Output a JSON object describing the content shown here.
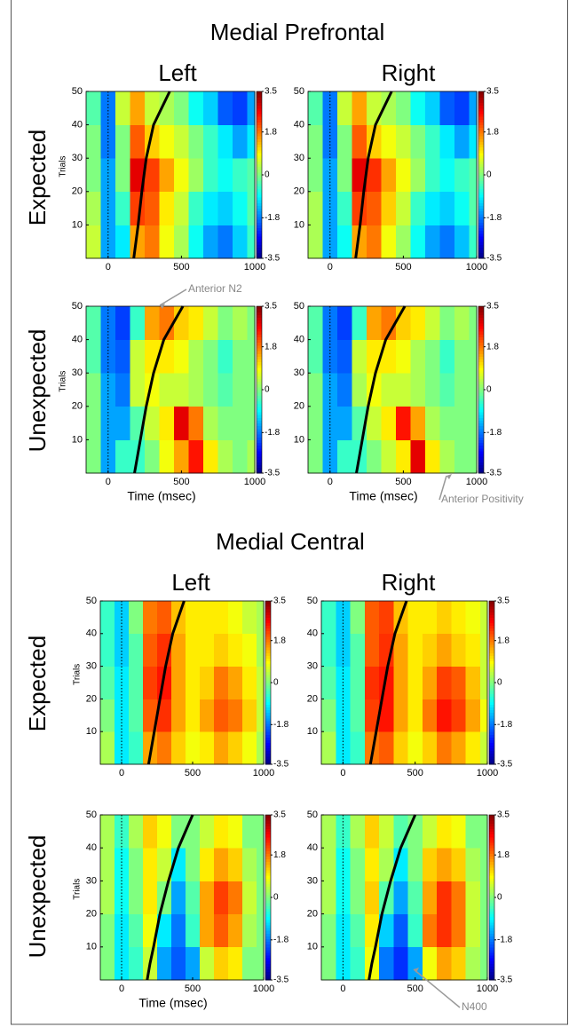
{
  "figure": {
    "sections": [
      {
        "title": "Medial Prefrontal",
        "columns": [
          "Left",
          "Right"
        ],
        "rows": [
          "Expected",
          "Unexpected"
        ]
      },
      {
        "title": "Medial Central",
        "columns": [
          "Left",
          "Right"
        ],
        "rows": [
          "Expected",
          "Unexpected"
        ]
      }
    ]
  },
  "chart_data": [
    {
      "type": "heatmap",
      "ylabel": "Trials",
      "colormap": "jet",
      "x_edges": [
        -150,
        -50,
        50,
        150,
        250,
        350,
        450,
        550,
        650,
        750,
        850,
        950,
        1000
      ],
      "y_edges": [
        0,
        10,
        20,
        30,
        40,
        50
      ],
      "xlim": [
        -150,
        1000
      ],
      "xticks": [
        0,
        500,
        1000
      ],
      "ylim": [
        0,
        50
      ],
      "yticks": [
        10,
        20,
        30,
        40,
        50
      ],
      "clim": [
        -3.5,
        3.5
      ],
      "cticks": [
        -3.5,
        -1.8,
        0,
        1.8,
        3.5
      ],
      "marker_x": 0,
      "values": [
        [
          0.5,
          -1.5,
          -1,
          1.5,
          1.8,
          0.8,
          0.3,
          -0.8,
          -1.5,
          -1.8,
          -1.2,
          -0.5
        ],
        [
          0.3,
          -1.5,
          -0.5,
          2.2,
          2,
          1,
          0.5,
          -0.5,
          -1,
          -1.2,
          -0.8,
          -0.3
        ],
        [
          0,
          -1.5,
          0,
          2.8,
          2.2,
          1.5,
          0.8,
          0.2,
          -0.5,
          -0.8,
          -0.5,
          -0.3
        ],
        [
          0,
          -1.8,
          0,
          2,
          1.2,
          0.8,
          0.5,
          0,
          -0.5,
          -1,
          -1.5,
          -1
        ],
        [
          -0.3,
          -1.8,
          0.5,
          1.5,
          0.5,
          0.3,
          0,
          -0.8,
          -1.2,
          -2,
          -2.2,
          -1.5
        ]
      ],
      "curve": {
        "color": "#000000",
        "x": [
          175,
          190,
          205,
          230,
          260,
          310,
          420
        ],
        "y": [
          0,
          5,
          10,
          20,
          30,
          40,
          50
        ]
      }
    },
    {
      "type": "heatmap",
      "colormap": "jet",
      "x_edges": [
        -150,
        -50,
        50,
        150,
        250,
        350,
        450,
        550,
        650,
        750,
        850,
        950,
        1000
      ],
      "y_edges": [
        0,
        10,
        20,
        30,
        40,
        50
      ],
      "xlim": [
        -150,
        1000
      ],
      "xticks": [
        0,
        500,
        1000
      ],
      "ylim": [
        0,
        50
      ],
      "yticks": [
        10,
        20,
        30,
        40,
        50
      ],
      "clim": [
        -3.5,
        3.5
      ],
      "cticks": [
        -3.5,
        -1.8,
        0,
        1.8,
        3.5
      ],
      "marker_x": 0,
      "values": [
        [
          0.3,
          -1.5,
          -0.8,
          1.5,
          1.8,
          0.8,
          0.2,
          -0.8,
          -1.5,
          -1.8,
          -1.3,
          -0.5
        ],
        [
          0.3,
          -1.5,
          -0.5,
          2.2,
          2,
          1.2,
          0.5,
          -0.5,
          -1,
          -1.2,
          -0.8,
          -0.3
        ],
        [
          0,
          -1.5,
          0,
          2.8,
          2.3,
          1.5,
          0.8,
          0.2,
          -0.5,
          -0.8,
          -0.5,
          -0.3
        ],
        [
          0,
          -1.8,
          0,
          2,
          1.2,
          0.8,
          0.5,
          0,
          -0.5,
          -1,
          -1.5,
          -1
        ],
        [
          -0.3,
          -1.8,
          0.5,
          1.5,
          0.5,
          0.3,
          0,
          -0.8,
          -1.2,
          -2,
          -2.2,
          -1.5
        ]
      ],
      "curve": {
        "color": "#000000",
        "x": [
          175,
          190,
          205,
          230,
          260,
          310,
          420
        ],
        "y": [
          0,
          5,
          10,
          20,
          30,
          40,
          50
        ]
      }
    },
    {
      "type": "heatmap",
      "ylabel": "Trials",
      "xlabel": "Time (msec)",
      "annotation": "Anterior N2",
      "colormap": "jet",
      "x_edges": [
        -150,
        -50,
        50,
        150,
        250,
        350,
        450,
        550,
        650,
        750,
        850,
        950,
        1000
      ],
      "y_edges": [
        0,
        10,
        20,
        30,
        40,
        50
      ],
      "xlim": [
        -150,
        1000
      ],
      "xticks": [
        0,
        500,
        1000
      ],
      "ylim": [
        0,
        50
      ],
      "yticks": [
        10,
        20,
        30,
        40,
        50
      ],
      "clim": [
        -3.5,
        3.5
      ],
      "cticks": [
        -3.5,
        -1.8,
        0,
        1.8,
        3.5
      ],
      "marker_x": 0,
      "values": [
        [
          0,
          -1.5,
          -0.5,
          -0.5,
          0,
          0.8,
          1.5,
          2.5,
          1,
          0.3,
          0,
          0.3
        ],
        [
          0,
          -1.5,
          -1.5,
          -0.3,
          0.5,
          1,
          2.8,
          1.8,
          0.3,
          0,
          0,
          0
        ],
        [
          0,
          -1.5,
          -1.8,
          0.5,
          0.8,
          0.5,
          0.5,
          0.3,
          0,
          -0.3,
          0,
          0
        ],
        [
          -0.3,
          -1.8,
          -2,
          0.5,
          1,
          1,
          0.8,
          0.3,
          0,
          -0.5,
          0,
          0
        ],
        [
          -0.3,
          -1.8,
          -2.2,
          -0.5,
          1.5,
          1.8,
          1.2,
          1,
          0.5,
          0,
          0.3,
          0
        ]
      ],
      "curve": {
        "color": "#000000",
        "x": [
          180,
          200,
          220,
          260,
          310,
          380,
          510
        ],
        "y": [
          0,
          5,
          10,
          20,
          30,
          40,
          50
        ]
      }
    },
    {
      "type": "heatmap",
      "xlabel": "Time (msec)",
      "annotation": "Anterior Positivity",
      "colormap": "jet",
      "x_edges": [
        -150,
        -50,
        50,
        150,
        250,
        350,
        450,
        550,
        650,
        750,
        850,
        950,
        1000
      ],
      "y_edges": [
        0,
        10,
        20,
        30,
        40,
        50
      ],
      "xlim": [
        -150,
        1000
      ],
      "xticks": [
        0,
        500,
        1000
      ],
      "ylim": [
        0,
        50
      ],
      "yticks": [
        10,
        20,
        30,
        40,
        50
      ],
      "clim": [
        -3.5,
        3.5
      ],
      "cticks": [
        -3.5,
        -1.8,
        0,
        1.8,
        3.5
      ],
      "marker_x": 0,
      "values": [
        [
          0,
          -1.5,
          -0.5,
          -0.5,
          0,
          0.5,
          1,
          2.8,
          1,
          0.3,
          0,
          0
        ],
        [
          0,
          -1.5,
          -1.5,
          -0.3,
          0.5,
          1,
          2.5,
          1.5,
          0.3,
          0,
          0,
          0
        ],
        [
          0,
          -1.5,
          -1.8,
          0.3,
          0.8,
          0.5,
          0.5,
          0.3,
          0,
          -0.3,
          0,
          0
        ],
        [
          -0.3,
          -1.8,
          -2,
          0.5,
          1,
          1,
          0.8,
          0.3,
          0,
          -0.5,
          0,
          0
        ],
        [
          -0.3,
          -1.8,
          -2.2,
          -0.5,
          1.5,
          1.8,
          1.2,
          1,
          0.5,
          0,
          0.3,
          0
        ]
      ],
      "curve": {
        "color": "#000000",
        "x": [
          180,
          200,
          220,
          260,
          310,
          380,
          510
        ],
        "y": [
          0,
          5,
          10,
          20,
          30,
          40,
          50
        ]
      }
    },
    {
      "type": "heatmap",
      "ylabel": "Trials",
      "colormap": "jet",
      "x_edges": [
        -150,
        -50,
        50,
        150,
        250,
        350,
        450,
        550,
        650,
        750,
        850,
        950,
        1000
      ],
      "y_edges": [
        0,
        10,
        20,
        30,
        40,
        50
      ],
      "xlim": [
        -150,
        1000
      ],
      "xticks": [
        0,
        500,
        1000
      ],
      "ylim": [
        0,
        50
      ],
      "yticks": [
        10,
        20,
        30,
        40,
        50
      ],
      "clim": [
        -3.5,
        3.5
      ],
      "cticks": [
        -3.5,
        -1.8,
        0,
        1.8,
        3.5
      ],
      "marker_x": 0,
      "values": [
        [
          0.3,
          -1,
          -0.5,
          1.5,
          1.8,
          1.2,
          0.8,
          1,
          1.5,
          1.2,
          0.8,
          0.3
        ],
        [
          0,
          -1,
          -0.3,
          2,
          2.3,
          1.5,
          1,
          1.5,
          2,
          1.8,
          1.2,
          0.5
        ],
        [
          -0.3,
          -1,
          -0.3,
          2.2,
          2.5,
          1.5,
          1,
          1.2,
          1.8,
          1.5,
          1,
          0.5
        ],
        [
          -0.5,
          -1.2,
          -0.3,
          2,
          2.3,
          1.5,
          1,
          1,
          1.2,
          1,
          0.8,
          0.3
        ],
        [
          -0.5,
          -1.2,
          0,
          1.8,
          2,
          1.3,
          1,
          1,
          1,
          0.8,
          0.5,
          0.3
        ]
      ],
      "curve": {
        "color": "#000000",
        "x": [
          190,
          210,
          230,
          270,
          310,
          360,
          440
        ],
        "y": [
          0,
          5,
          10,
          20,
          30,
          40,
          50
        ]
      }
    },
    {
      "type": "heatmap",
      "colormap": "jet",
      "x_edges": [
        -150,
        -50,
        50,
        150,
        250,
        350,
        450,
        550,
        650,
        750,
        850,
        950,
        1000
      ],
      "y_edges": [
        0,
        10,
        20,
        30,
        40,
        50
      ],
      "xlim": [
        -150,
        1000
      ],
      "xticks": [
        0,
        500,
        1000
      ],
      "ylim": [
        0,
        50
      ],
      "yticks": [
        10,
        20,
        30,
        40,
        50
      ],
      "clim": [
        -3.5,
        3.5
      ],
      "cticks": [
        -3.5,
        -1.8,
        0,
        1.8,
        3.5
      ],
      "marker_x": 0,
      "values": [
        [
          0.3,
          -1,
          -0.5,
          1.8,
          2,
          1.2,
          0.8,
          1.2,
          1.8,
          1.5,
          1,
          0.5
        ],
        [
          0,
          -1,
          -0.3,
          2.2,
          2.5,
          1.5,
          1,
          1.8,
          2.5,
          2.2,
          1.5,
          0.8
        ],
        [
          -0.3,
          -1,
          -0.3,
          2.3,
          2.5,
          1.5,
          1,
          1.5,
          2.2,
          2,
          1.3,
          0.5
        ],
        [
          -0.5,
          -1.2,
          -0.3,
          2,
          2.3,
          1.5,
          1,
          1.2,
          1.5,
          1.2,
          1,
          0.5
        ],
        [
          -0.5,
          -1.2,
          0,
          2,
          2.2,
          1.3,
          1,
          1,
          1.2,
          1,
          0.8,
          0.5
        ]
      ],
      "curve": {
        "color": "#000000",
        "x": [
          190,
          210,
          230,
          270,
          310,
          360,
          440
        ],
        "y": [
          0,
          5,
          10,
          20,
          30,
          40,
          50
        ]
      }
    },
    {
      "type": "heatmap",
      "ylabel": "Trials",
      "xlabel": "Time (msec)",
      "colormap": "jet",
      "x_edges": [
        -150,
        -50,
        50,
        150,
        250,
        350,
        450,
        550,
        650,
        750,
        850,
        950,
        1000
      ],
      "y_edges": [
        0,
        10,
        20,
        30,
        40,
        50
      ],
      "xlim": [
        -150,
        1000
      ],
      "xticks": [
        0,
        500,
        1000
      ],
      "ylim": [
        0,
        50
      ],
      "yticks": [
        10,
        20,
        30,
        40,
        50
      ],
      "clim": [
        -3.5,
        3.5
      ],
      "cticks": [
        -3.5,
        -1.8,
        0,
        1.8,
        3.5
      ],
      "marker_x": 0,
      "values": [
        [
          0,
          -1,
          -0.5,
          0.5,
          -1.5,
          -2,
          -1.5,
          0.5,
          1.2,
          1,
          0,
          0
        ],
        [
          0,
          -1,
          -0.3,
          0.8,
          -1,
          -1.8,
          -0.5,
          1.5,
          2,
          1.5,
          0.3,
          0
        ],
        [
          0.3,
          -0.8,
          0,
          1,
          0,
          -1.5,
          -0.3,
          1.5,
          2.2,
          1.8,
          0.5,
          0
        ],
        [
          0.3,
          -0.8,
          0,
          1,
          0.5,
          -1,
          0,
          1,
          1.5,
          1.2,
          0.3,
          0
        ],
        [
          0.3,
          -0.5,
          0.3,
          1.2,
          0.8,
          0,
          0,
          0.5,
          1,
          0.8,
          0,
          0
        ]
      ],
      "curve": {
        "color": "#000000",
        "x": [
          180,
          200,
          225,
          270,
          330,
          400,
          500
        ],
        "y": [
          0,
          5,
          10,
          20,
          30,
          40,
          50
        ]
      }
    },
    {
      "type": "heatmap",
      "annotation": "N400",
      "colormap": "jet",
      "x_edges": [
        -150,
        -50,
        50,
        150,
        250,
        350,
        450,
        550,
        650,
        750,
        850,
        950,
        1000
      ],
      "y_edges": [
        0,
        10,
        20,
        30,
        40,
        50
      ],
      "xlim": [
        -150,
        1000
      ],
      "xticks": [
        0,
        500,
        1000
      ],
      "ylim": [
        0,
        50
      ],
      "yticks": [
        10,
        20,
        30,
        40,
        50
      ],
      "clim": [
        -3.5,
        3.5
      ],
      "cticks": [
        -3.5,
        -1.8,
        0,
        1.8,
        3.5
      ],
      "marker_x": 0,
      "values": [
        [
          0,
          -1,
          -0.5,
          0.8,
          -1.8,
          -2.3,
          -1.5,
          0.8,
          1.5,
          1.2,
          0.3,
          0
        ],
        [
          0,
          -1,
          -0.3,
          1,
          -1.2,
          -2,
          -0.5,
          1.8,
          2.3,
          1.8,
          0.5,
          0
        ],
        [
          0.3,
          -0.8,
          0,
          1.2,
          -0.3,
          -1.5,
          -0.3,
          1.5,
          2.3,
          1.8,
          0.5,
          0
        ],
        [
          0.3,
          -0.8,
          0,
          1,
          0.3,
          -1,
          0,
          1.2,
          1.5,
          1.2,
          0.3,
          0
        ],
        [
          0.3,
          -0.5,
          0.3,
          1.2,
          0.5,
          -0.3,
          0,
          0.5,
          1,
          0.8,
          0,
          0
        ]
      ],
      "curve": {
        "color": "#000000",
        "x": [
          180,
          200,
          225,
          270,
          330,
          400,
          500
        ],
        "y": [
          0,
          5,
          10,
          20,
          30,
          40,
          50
        ]
      }
    }
  ]
}
